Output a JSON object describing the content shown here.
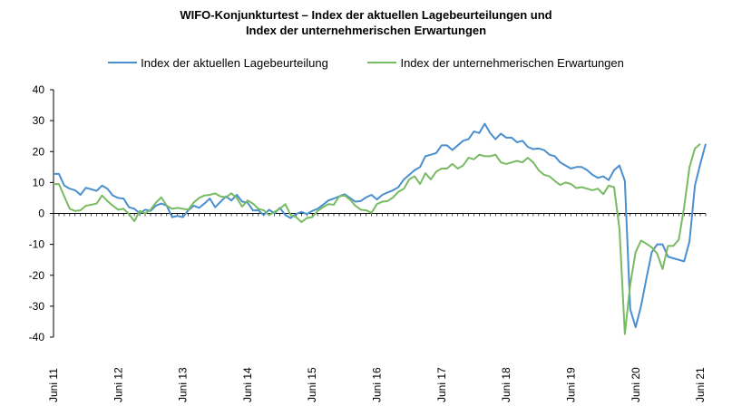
{
  "chart_data": {
    "type": "line",
    "title_line1": "WIFO-Konjunkturtest – Index der aktuellen Lagebeurteilungen und",
    "title_line2": "Index der unternehmerischen Erwartungen",
    "ylim": [
      -40,
      40
    ],
    "yticks": [
      40,
      30,
      20,
      10,
      0,
      -10,
      -20,
      -30,
      -40
    ],
    "grid": false,
    "legend_position": "top",
    "x_labels": [
      "Juni 11",
      "Juni 12",
      "Juni 13",
      "Juni 14",
      "Juni 15",
      "Juni 16",
      "Juni 17",
      "Juni 18",
      "Juni 19",
      "Juni 20",
      "Juni 21"
    ],
    "months_per_label": 12,
    "series": [
      {
        "name": "Index der aktuellen Lagebeurteilung",
        "color": "#4a8fcf",
        "values": [
          12.8,
          12.8,
          9.0,
          8.0,
          7.5,
          6.0,
          8.3,
          7.8,
          7.3,
          9.0,
          8.0,
          5.8,
          5.0,
          4.8,
          2.0,
          1.5,
          0.0,
          1.2,
          0.8,
          2.5,
          3.2,
          2.5,
          -1.2,
          -0.8,
          -1.2,
          1.0,
          2.5,
          1.8,
          3.2,
          4.8,
          2.0,
          3.8,
          5.5,
          4.2,
          6.0,
          3.8,
          3.5,
          1.0,
          1.0,
          -0.5,
          1.2,
          0.0,
          1.8,
          -0.5,
          -1.5,
          -0.2,
          0.5,
          -0.2,
          0.8,
          1.5,
          2.8,
          4.2,
          4.8,
          5.5,
          6.2,
          5.0,
          3.8,
          4.0,
          5.2,
          6.0,
          4.5,
          6.0,
          6.8,
          7.5,
          8.5,
          11.0,
          12.5,
          14.0,
          15.0,
          18.5,
          19.0,
          19.5,
          22.0,
          22.0,
          20.5,
          22.0,
          23.5,
          24.0,
          26.5,
          26.0,
          29.0,
          26.0,
          24.0,
          25.8,
          24.5,
          24.5,
          23.0,
          23.5,
          21.5,
          20.8,
          21.0,
          20.5,
          19.0,
          18.5,
          16.5,
          15.5,
          14.5,
          15.0,
          15.0,
          14.0,
          12.5,
          11.5,
          12.0,
          10.8,
          14.0,
          15.5,
          10.5,
          -31.0,
          -36.8,
          -30.0,
          -21.0,
          -12.5,
          -10.0,
          -10.0,
          -14.0,
          -14.5,
          -15.0,
          -15.5,
          -9.0,
          9.0,
          16.0,
          22.5
        ]
      },
      {
        "name": "Index der unternehmerischen Erwartungen",
        "color": "#78bb62",
        "values": [
          9.5,
          9.5,
          5.5,
          1.5,
          0.8,
          1.0,
          2.5,
          2.8,
          3.2,
          5.8,
          4.0,
          2.5,
          1.2,
          1.5,
          -0.2,
          -2.5,
          0.8,
          0.0,
          1.2,
          3.5,
          5.2,
          2.5,
          1.5,
          1.8,
          1.5,
          1.2,
          3.5,
          5.0,
          5.8,
          6.0,
          6.5,
          5.5,
          5.2,
          6.5,
          5.0,
          2.2,
          4.2,
          3.2,
          1.5,
          1.0,
          -0.5,
          0.5,
          1.5,
          3.0,
          -0.5,
          -1.2,
          -2.8,
          -1.5,
          -1.2,
          0.8,
          2.0,
          3.0,
          2.8,
          5.5,
          5.8,
          4.5,
          2.5,
          1.2,
          1.0,
          0.2,
          3.0,
          3.8,
          4.0,
          5.2,
          7.0,
          8.0,
          11.0,
          12.0,
          9.5,
          13.0,
          11.0,
          13.5,
          14.5,
          14.5,
          16.0,
          14.5,
          15.5,
          18.0,
          17.5,
          19.0,
          18.5,
          18.5,
          19.0,
          16.5,
          16.0,
          16.5,
          17.0,
          16.5,
          18.0,
          16.5,
          14.0,
          12.5,
          12.0,
          10.5,
          9.2,
          10.0,
          9.5,
          8.2,
          8.5,
          8.0,
          7.5,
          8.0,
          6.2,
          9.0,
          8.5,
          -5.0,
          -39.0,
          -23.0,
          -12.5,
          -8.8,
          -9.8,
          -11.0,
          -13.0,
          -18.0,
          -10.5,
          -10.5,
          -8.5,
          2.0,
          15.0,
          21.0,
          22.5
        ]
      }
    ]
  }
}
